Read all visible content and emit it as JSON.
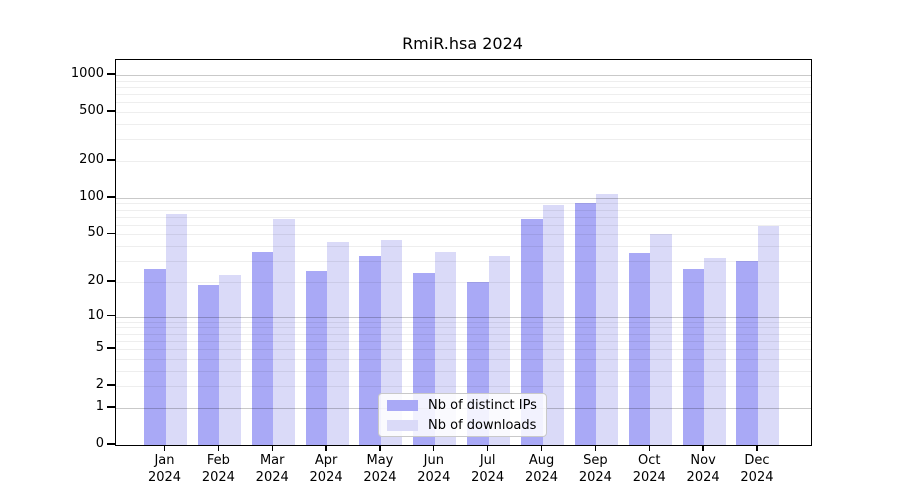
{
  "title": "RmiR.hsa 2024",
  "chart_data": {
    "type": "bar",
    "title": "RmiR.hsa 2024",
    "categories": [
      "Jan 2024",
      "Feb 2024",
      "Mar 2024",
      "Apr 2024",
      "May 2024",
      "Jun 2024",
      "Jul 2024",
      "Aug 2024",
      "Sep 2024",
      "Oct 2024",
      "Nov 2024",
      "Dec 2024"
    ],
    "series": [
      {
        "name": "Nb of distinct IPs",
        "color": "#a9a9f6",
        "values": [
          26,
          19,
          36,
          25,
          33,
          24,
          20,
          67,
          91,
          35,
          26,
          30
        ]
      },
      {
        "name": "Nb of downloads",
        "color": "#dadaf8",
        "values": [
          74,
          23,
          67,
          43,
          45,
          36,
          33,
          87,
          107,
          50,
          32,
          59
        ]
      }
    ],
    "xlabel": "",
    "ylabel": "",
    "yscale": "log1p",
    "yticks": [
      0,
      1,
      2,
      5,
      10,
      20,
      50,
      100,
      200,
      500,
      1000
    ],
    "ylim": [
      0,
      1320
    ],
    "grid": true,
    "gridline_major_values": [
      1,
      10,
      100,
      1000
    ],
    "legend_position": "inside-bottom-center"
  },
  "legend": {
    "items": [
      {
        "label": "Nb of distinct IPs",
        "color": "#a9a9f6"
      },
      {
        "label": "Nb of downloads",
        "color": "#dadaf8"
      }
    ]
  },
  "colors": {
    "background": "#ffffff",
    "axis": "#000000",
    "grid_major": "#c9c9c9",
    "grid_minor": "#ededed",
    "bar_distinct_ips": "#a9a9f6",
    "bar_downloads": "#dadaf8"
  }
}
